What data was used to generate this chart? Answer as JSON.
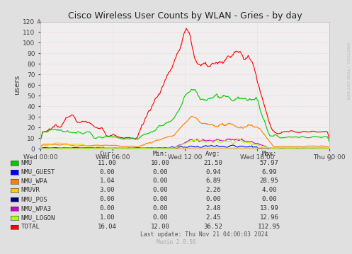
{
  "title": "Cisco Wireless User Counts by WLAN - Gries - by day",
  "ylabel": "users",
  "background_color": "#e0e0e0",
  "plot_bg_color": "#f0eeee",
  "grid_color": "#ffffff",
  "ylim": [
    0,
    120
  ],
  "yticks": [
    0,
    10,
    20,
    30,
    40,
    50,
    60,
    70,
    80,
    90,
    100,
    110,
    120
  ],
  "xtick_labels": [
    "Wed 00:00",
    "Wed 06:00",
    "Wed 12:00",
    "Wed 18:00",
    "Thu 00:00"
  ],
  "watermark": "RRDTOOL / TOBI OETIKER",
  "munin_version": "Munin 2.0.56",
  "last_update": "Last update: Thu Nov 21 04:00:03 2024",
  "series": [
    {
      "label": "NMU",
      "color": "#00cc00",
      "cur": 11.0,
      "min": 10.0,
      "avg": 21.5,
      "max": 57.97
    },
    {
      "label": "NMU_GUEST",
      "color": "#0000ff",
      "cur": 0.0,
      "min": 0.0,
      "avg": 0.94,
      "max": 6.99
    },
    {
      "label": "NMU_WPA",
      "color": "#ff7f00",
      "cur": 1.04,
      "min": 0.0,
      "avg": 6.89,
      "max": 28.95
    },
    {
      "label": "NMUVR",
      "color": "#ffcc00",
      "cur": 3.0,
      "min": 0.0,
      "avg": 2.26,
      "max": 4.0
    },
    {
      "label": "NMU_POS",
      "color": "#000080",
      "cur": 0.0,
      "min": 0.0,
      "avg": 0.0,
      "max": 0.0
    },
    {
      "label": "NMU_WPA3",
      "color": "#cc00cc",
      "cur": 0.0,
      "min": 0.0,
      "avg": 2.48,
      "max": 13.99
    },
    {
      "label": "NMU_LOGON",
      "color": "#aaff00",
      "cur": 1.0,
      "min": 0.0,
      "avg": 2.45,
      "max": 12.96
    },
    {
      "label": "TOTAL",
      "color": "#ff0000",
      "cur": 16.04,
      "min": 12.0,
      "avg": 36.52,
      "max": 112.95
    }
  ]
}
